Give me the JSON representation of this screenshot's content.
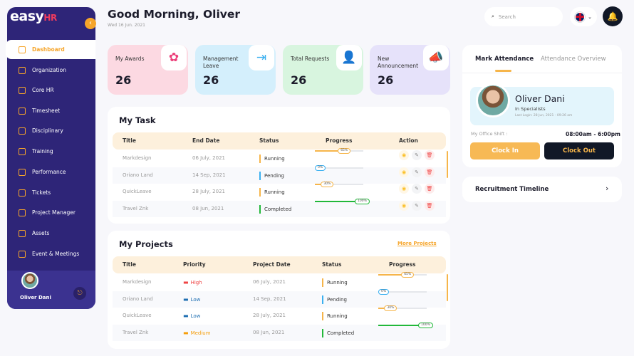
{
  "brand": {
    "name": "easy",
    "suffix": "HR"
  },
  "sidebar": {
    "items": [
      {
        "label": "Dashboard",
        "active": true
      },
      {
        "label": "Organization"
      },
      {
        "label": "Core HR"
      },
      {
        "label": "Timesheet"
      },
      {
        "label": "Disciplinary"
      },
      {
        "label": "Training"
      },
      {
        "label": "Performance"
      },
      {
        "label": "Tickets"
      },
      {
        "label": "Project Manager"
      },
      {
        "label": "Assets"
      },
      {
        "label": "Event & Meetings"
      }
    ],
    "user": "Oliver Dani"
  },
  "header": {
    "greeting": "Good Morning, Oliver",
    "date": "Wed 16 Jun. 2021",
    "search_placeholder": "Search"
  },
  "cards": [
    {
      "label": "My Awards",
      "value": "26",
      "color": "#fcd9e2",
      "icon": "award-icon"
    },
    {
      "label": "Management Leave",
      "value": "26",
      "color": "#d4effc",
      "icon": "exit-door-icon"
    },
    {
      "label": "Total Requests",
      "value": "26",
      "color": "#d8f5df",
      "icon": "add-user-icon"
    },
    {
      "label": "New Announcement",
      "value": "26",
      "color": "#e6e2fa",
      "icon": "megaphone-icon"
    }
  ],
  "tasks": {
    "title": "My Task",
    "columns": [
      "Title",
      "End Date",
      "Status",
      "Progress",
      "Action"
    ],
    "rows": [
      {
        "title": "Markdesign",
        "date": "06 July, 2021",
        "status": "Running",
        "progress": 65
      },
      {
        "title": "Oriano Land",
        "date": "14 Sep, 2021",
        "status": "Pending",
        "progress": 0
      },
      {
        "title": "QuickLeave",
        "date": "28 July, 2021",
        "status": "Running",
        "progress": 30
      },
      {
        "title": "Travel Znk",
        "date": "08 Jun, 2021",
        "status": "Completed",
        "progress": 100
      }
    ]
  },
  "projects": {
    "title": "My Projects",
    "more": "More Projects",
    "columns": [
      "Title",
      "Priority",
      "Project Date",
      "Status",
      "Progress"
    ],
    "rows": [
      {
        "title": "Markdesign",
        "priority": "High",
        "date": "06 July, 2021",
        "status": "Running",
        "progress": 65
      },
      {
        "title": "Oriano Land",
        "priority": "Low",
        "date": "14 Sep, 2021",
        "status": "Pending",
        "progress": 0
      },
      {
        "title": "QuickLeave",
        "priority": "Low",
        "date": "28 July, 2021",
        "status": "Running",
        "progress": 30
      },
      {
        "title": "Travel Znk",
        "priority": "Medium",
        "date": "08 Jun, 2021",
        "status": "Completed",
        "progress": 100
      }
    ]
  },
  "attendance": {
    "tabs": [
      "Mark Attendance",
      "Attendance Overview"
    ],
    "name": "Oliver Dani",
    "role": "In Specialists",
    "last_login": "Last Login: 28 Jun, 2021 - 09:26 am",
    "shift_label": "My Office Shift :",
    "shift": "08:00am - 6:00pm",
    "clock_in": "Clock In",
    "clock_out": "Clock Out"
  },
  "recruitment": {
    "title": "Recruitment Timeline"
  },
  "colors": {
    "accent": "#f6a52a",
    "sidebar": "#2e2578",
    "running": "#f6b54a",
    "pending": "#3bb0f0",
    "completed": "#22b83a",
    "high": "#ef4444",
    "low": "#1f6fb2",
    "medium": "#f59e0b"
  }
}
